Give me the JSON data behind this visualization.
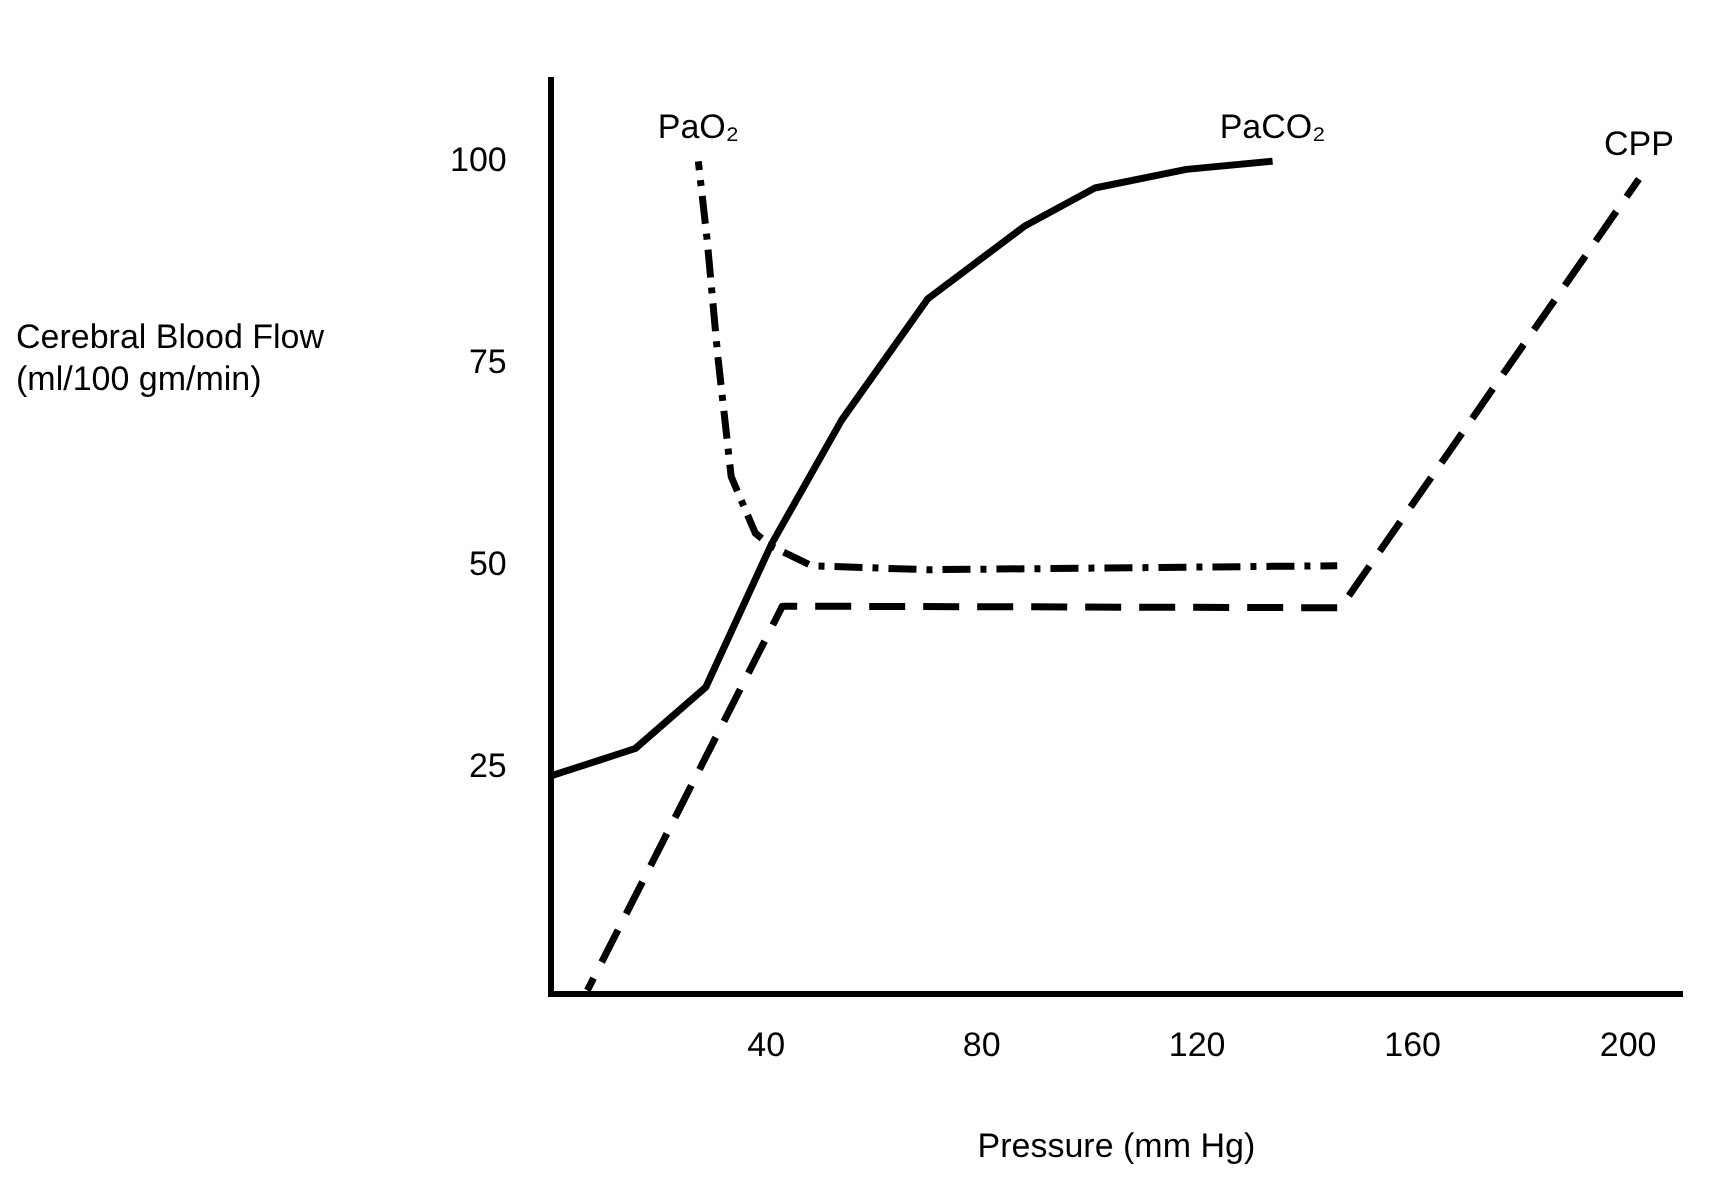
{
  "chart_data": {
    "type": "line",
    "xlabel": "Pressure (mm Hg)",
    "ylabel": "Cerebral Blood Flow (ml/100 gm/min)",
    "xlim": [
      0,
      210
    ],
    "xticks": [
      40,
      80,
      120,
      160,
      200
    ],
    "ylim": [
      -3,
      110
    ],
    "yticks": [
      25,
      50,
      75,
      100
    ],
    "grid": false,
    "legend": false,
    "marker": "none",
    "series": [
      {
        "name": "PaO₂",
        "color": "#000000",
        "line_style": "dashdot",
        "x": [
          27.4,
          29,
          31,
          33.5,
          38,
          41,
          48.4,
          70,
          146
        ],
        "values": [
          100,
          90.5,
          76,
          61,
          54,
          52.4,
          50,
          49.5,
          50
        ]
      },
      {
        "name": "PaCO₂",
        "color": "#000000",
        "line_style": "solid",
        "x": [
          0,
          15.7,
          28.8,
          41,
          54,
          70,
          88,
          101,
          118,
          134
        ],
        "values": [
          24,
          27.4,
          35,
          52.7,
          68,
          83,
          92,
          96.7,
          99,
          100
        ]
      },
      {
        "name": "CPP",
        "color": "#000000",
        "line_style": "dashed",
        "x": [
          6.8,
          43,
          146.6,
          202
        ],
        "values": [
          -2.5,
          45,
          44.8,
          97.8
        ]
      }
    ]
  }
}
